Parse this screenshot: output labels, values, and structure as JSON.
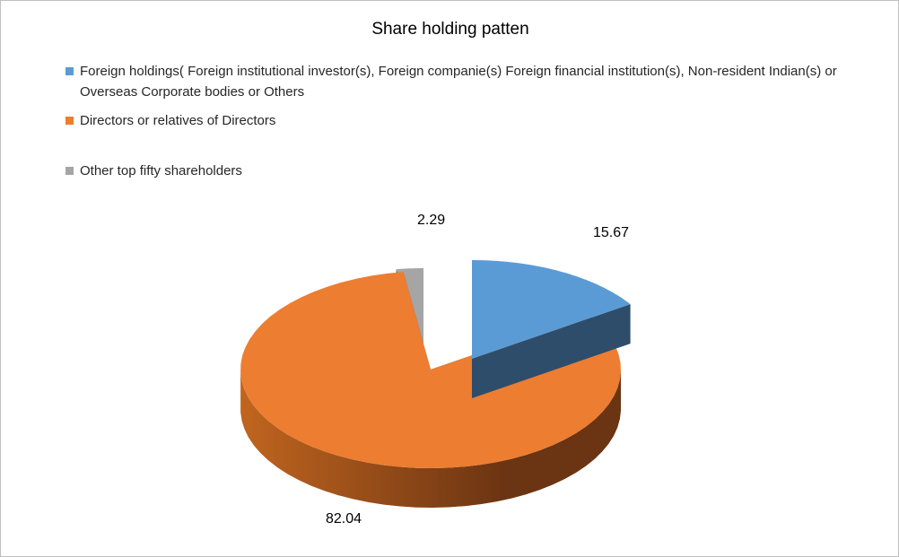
{
  "chart_data": {
    "type": "pie",
    "title": "Share holding patten",
    "categories": [
      "Foreign holdings( Foreign institutional investor(s), Foreign companie(s) Foreign financial institution(s), Non-resident Indian(s) or Overseas Corporate bodies or Others",
      "Directors or relatives of Directors",
      "Other top fifty shareholders"
    ],
    "values": [
      15.67,
      82.04,
      2.29
    ],
    "data_labels": [
      "15.67",
      "82.04",
      "2.29"
    ],
    "colors": [
      "#5b9bd5",
      "#ed7d31",
      "#a5a5a5"
    ],
    "side_colors": [
      "#2e4d6b",
      "#6b3412",
      "#404040"
    ],
    "legend_position": "top",
    "style": "3d-exploded"
  }
}
